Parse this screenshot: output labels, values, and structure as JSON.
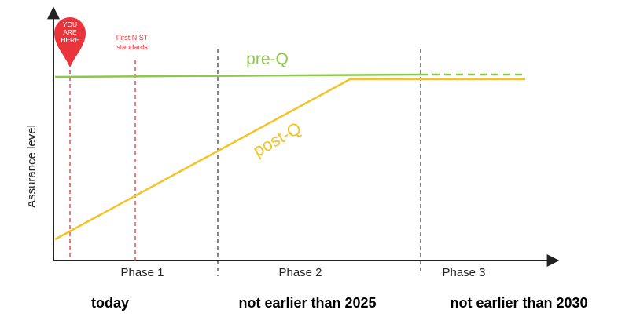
{
  "diagram": {
    "axis_label": "Assurance level",
    "pin_label": [
      "YOU",
      "ARE",
      "HERE"
    ],
    "nist_label": [
      "First NIST",
      "standards"
    ],
    "pre_q": "pre-Q",
    "post_q": "post-Q",
    "phases": [
      "Phase 1",
      "Phase 2",
      "Phase 3"
    ],
    "timeline": [
      "today",
      "not earlier than 2025",
      "not earlier than 2030"
    ]
  }
}
